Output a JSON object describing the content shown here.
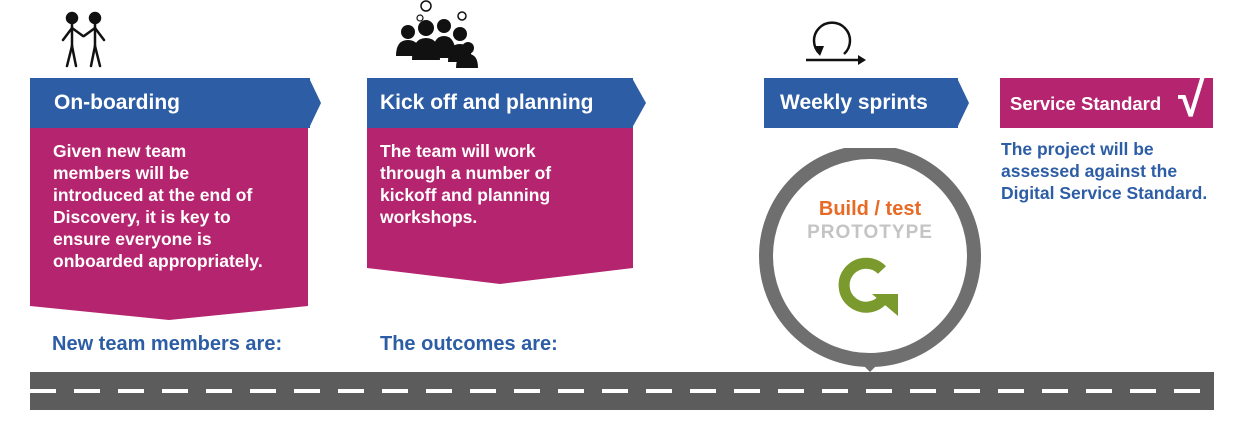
{
  "stages": [
    {
      "title": "On-boarding",
      "body": [
        "Given new team",
        "members will be",
        "introduced at the end of",
        "Discovery, it is key to",
        "ensure everyone is",
        "onboarded appropriately."
      ],
      "footer": "New team members are:"
    },
    {
      "title": "Kick off and planning",
      "body": [
        "The team will work",
        "through a number of",
        "kickoff and planning",
        "workshops."
      ],
      "footer": "The outcomes are:"
    },
    {
      "title": "Weekly sprints",
      "wheel_line1": "Build / test",
      "wheel_line2": "PROTOTYPE"
    },
    {
      "title": "Service Standard",
      "check": "√",
      "body": [
        "The project will be",
        "assessed against the",
        "Digital Service Standard."
      ]
    }
  ],
  "colors": {
    "blue": "#2d5da5",
    "pink": "#b5256f",
    "orange": "#e86a25",
    "grey": "#6f6f6f",
    "green": "#7a9a2e"
  },
  "icons": [
    "two-people-icon",
    "crowd-thought-icon",
    "cycle-arrow-icon",
    "refresh-arrow-icon"
  ]
}
